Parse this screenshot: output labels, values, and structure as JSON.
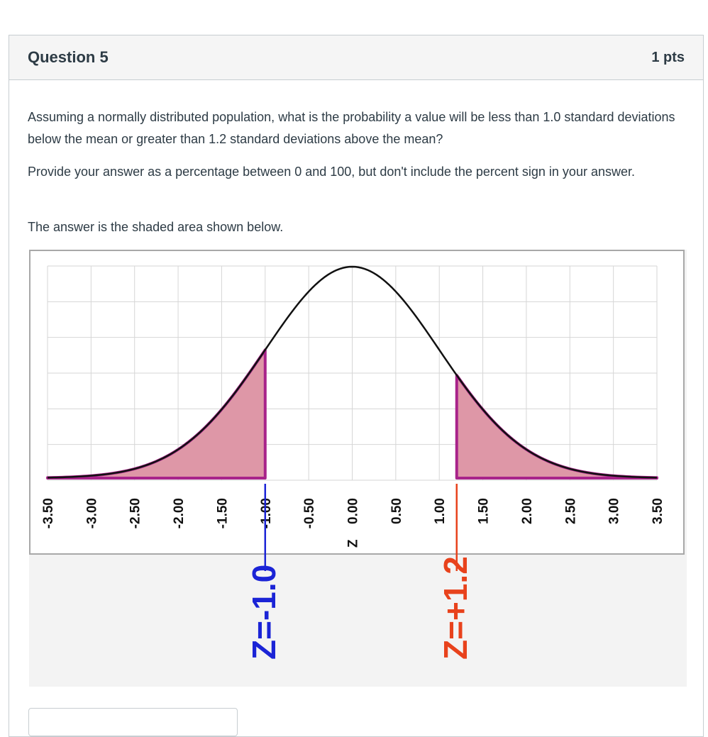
{
  "question": {
    "title": "Question 5",
    "points": "1 pts",
    "paragraph1": "Assuming a normally distributed population, what is the probability a value will be less than 1.0 standard deviations below the mean or greater than 1.2 standard deviations above the mean?",
    "paragraph2": "Provide your answer as a percentage between 0 and 100, but don't include the percent sign in your answer.",
    "paragraph3": "The answer is the shaded area shown below."
  },
  "answer": {
    "value": ""
  },
  "colors": {
    "shade_fill": "#de97a7",
    "shade_stroke": "#a8238a",
    "curve": "#111111",
    "grid": "#d6d6d6",
    "z_left": "#1b24d6",
    "z_right": "#e8421c"
  },
  "chart_data": {
    "type": "area",
    "title": "",
    "xlabel": "Z",
    "ylabel": "",
    "x_ticks": [
      "-3.50",
      "-3.00",
      "-2.50",
      "-2.00",
      "-1.50",
      "-1.00",
      "-0.50",
      "0.00",
      "0.50",
      "1.00",
      "1.50",
      "2.00",
      "2.50",
      "3.00",
      "3.50"
    ],
    "xlim": [
      -3.5,
      3.5
    ],
    "grid": true,
    "curve": "standard normal density",
    "shaded_regions": [
      {
        "from": -3.5,
        "to": -1.0
      },
      {
        "from": 1.2,
        "to": 3.5
      }
    ],
    "annotations": [
      {
        "text": "Z=-1.0",
        "x": -1.0
      },
      {
        "text": "Z=+1.2",
        "x": 1.2
      }
    ]
  }
}
